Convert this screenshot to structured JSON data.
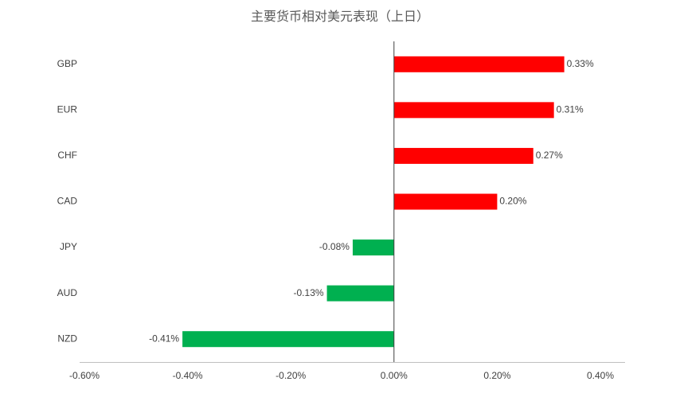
{
  "chart_data": {
    "type": "hbar",
    "title": "主要货币相对美元表现（上日）",
    "categories": [
      "GBP",
      "EUR",
      "CHF",
      "CAD",
      "JPY",
      "AUD",
      "NZD"
    ],
    "values": [
      0.33,
      0.31,
      0.27,
      0.2,
      -0.08,
      -0.13,
      -0.41
    ],
    "value_labels": [
      "0.33%",
      "0.31%",
      "0.27%",
      "0.20%",
      "-0.08%",
      "-0.13%",
      "-0.41%"
    ],
    "colors": [
      "#ff0000",
      "#ff0000",
      "#ff0000",
      "#ff0000",
      "#00b050",
      "#00b050",
      "#00b050"
    ],
    "xlim": [
      -0.6,
      0.4
    ],
    "xticks": [
      {
        "value": -0.6,
        "label": "-0.60%"
      },
      {
        "value": -0.4,
        "label": "-0.40%"
      },
      {
        "value": -0.2,
        "label": "-0.20%"
      },
      {
        "value": 0,
        "label": "0.00%"
      },
      {
        "value": 0.2,
        "label": "0.20%"
      },
      {
        "value": 0.4,
        "label": "0.40%"
      }
    ],
    "grid": false
  }
}
